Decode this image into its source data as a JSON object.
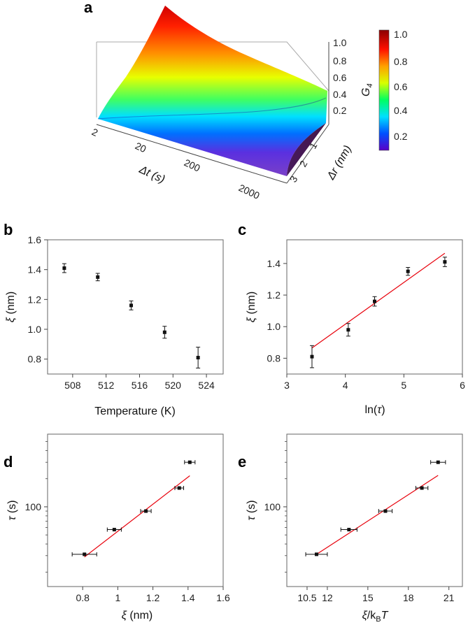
{
  "panel_a": {
    "label": "a",
    "zlabel_main": "G",
    "zlabel_sub": "4",
    "xlabel": "Δt (s)",
    "ylabel": "Δr (nm)",
    "x_ticks": [
      "2",
      "20",
      "200",
      "2000"
    ],
    "y_ticks": [
      "1",
      "2",
      "3"
    ],
    "z_ticks": [
      "0.2",
      "0.4",
      "0.6",
      "0.8",
      "1.0"
    ],
    "colorbar_ticks": [
      "0.2",
      "0.4",
      "0.6",
      "0.8",
      "1.0"
    ],
    "colorbar_colors": [
      "#5a00c8",
      "#0050ff",
      "#00e0ff",
      "#00ff60",
      "#d8ff00",
      "#ffa000",
      "#ff1000",
      "#8b0000"
    ]
  },
  "chart_data": [
    {
      "id": "a",
      "type": "surface",
      "title": "",
      "xlabel": "Δt (s)",
      "ylabel": "Δr (nm)",
      "zlabel": "G4",
      "x_scale": "log",
      "xlim": [
        2,
        2000
      ],
      "ylim": [
        0,
        3
      ],
      "zlim": [
        0.1,
        1.0
      ],
      "description_values": {
        "peak_G4_at_min_dt_min_dr": 1.0,
        "plateau_G4": 0.2
      }
    },
    {
      "id": "b",
      "label": "b",
      "type": "scatter",
      "xlabel": "Temperature (K)",
      "ylabel_sym": "ξ",
      "ylabel_unit": " (nm)",
      "xlim": [
        505,
        526
      ],
      "ylim": [
        0.7,
        1.6
      ],
      "x_ticks": [
        "508",
        "512",
        "516",
        "520",
        "524"
      ],
      "y_ticks": [
        "0.8",
        "1.0",
        "1.2",
        "1.4",
        "1.6"
      ],
      "x": [
        507,
        511,
        515,
        519,
        523
      ],
      "y": [
        1.41,
        1.35,
        1.16,
        0.98,
        0.81
      ],
      "yerr": [
        0.03,
        0.025,
        0.03,
        0.04,
        0.07
      ]
    },
    {
      "id": "c",
      "label": "c",
      "type": "scatter",
      "xlabel_pre": "ln(",
      "xlabel_sym": "τ",
      "xlabel_post": ")",
      "ylabel_sym": "ξ",
      "ylabel_unit": " (nm)",
      "xlim": [
        3,
        6
      ],
      "ylim": [
        0.7,
        1.55
      ],
      "x_ticks": [
        "3",
        "4",
        "5",
        "6"
      ],
      "y_ticks": [
        "0.8",
        "1.0",
        "1.2",
        "1.4"
      ],
      "x": [
        3.43,
        4.05,
        4.5,
        5.07,
        5.7
      ],
      "y": [
        0.81,
        0.98,
        1.16,
        1.35,
        1.41
      ],
      "yerr": [
        0.07,
        0.04,
        0.03,
        0.025,
        0.03
      ],
      "fit": {
        "x": [
          3.43,
          5.7
        ],
        "y": [
          0.865,
          1.465
        ],
        "color": "#e8000b"
      }
    },
    {
      "id": "d",
      "label": "d",
      "type": "scatter",
      "xlabel_sym": "ξ",
      "xlabel_unit": " (nm)",
      "ylabel_sym": "τ",
      "ylabel_unit": " (s)",
      "y_scale": "log",
      "xlim": [
        0.6,
        1.6
      ],
      "ylim": [
        14,
        600
      ],
      "x_ticks": [
        "0.8",
        "1",
        "1.2",
        "1.4",
        "1.6"
      ],
      "y_ticks": [
        "100"
      ],
      "x": [
        0.81,
        0.98,
        1.16,
        1.35,
        1.41
      ],
      "y": [
        31,
        57,
        90,
        159,
        300
      ],
      "xerr": [
        0.07,
        0.04,
        0.03,
        0.025,
        0.03
      ],
      "fit": {
        "x": [
          0.81,
          1.41
        ],
        "y": [
          29,
          215
        ],
        "color": "#e8000b"
      }
    },
    {
      "id": "e",
      "label": "e",
      "type": "scatter",
      "xlabel_sym": "ξ",
      "xlabel_mid": "/k",
      "xlabel_sub": "B",
      "xlabel_T": "T",
      "ylabel_sym": "τ",
      "ylabel_unit": " (s)",
      "y_scale": "log",
      "xlim": [
        9,
        22
      ],
      "ylim": [
        14,
        600
      ],
      "x_ticks": [
        "10.5",
        "12",
        "15",
        "18",
        "21"
      ],
      "y_ticks": [
        "100"
      ],
      "x": [
        11.2,
        13.6,
        16.3,
        19.0,
        20.2
      ],
      "y": [
        31,
        57,
        90,
        159,
        300
      ],
      "xerr": [
        0.8,
        0.6,
        0.5,
        0.45,
        0.55
      ],
      "fit": {
        "x": [
          11.2,
          20.2
        ],
        "y": [
          31,
          217
        ],
        "color": "#e8000b"
      }
    }
  ]
}
